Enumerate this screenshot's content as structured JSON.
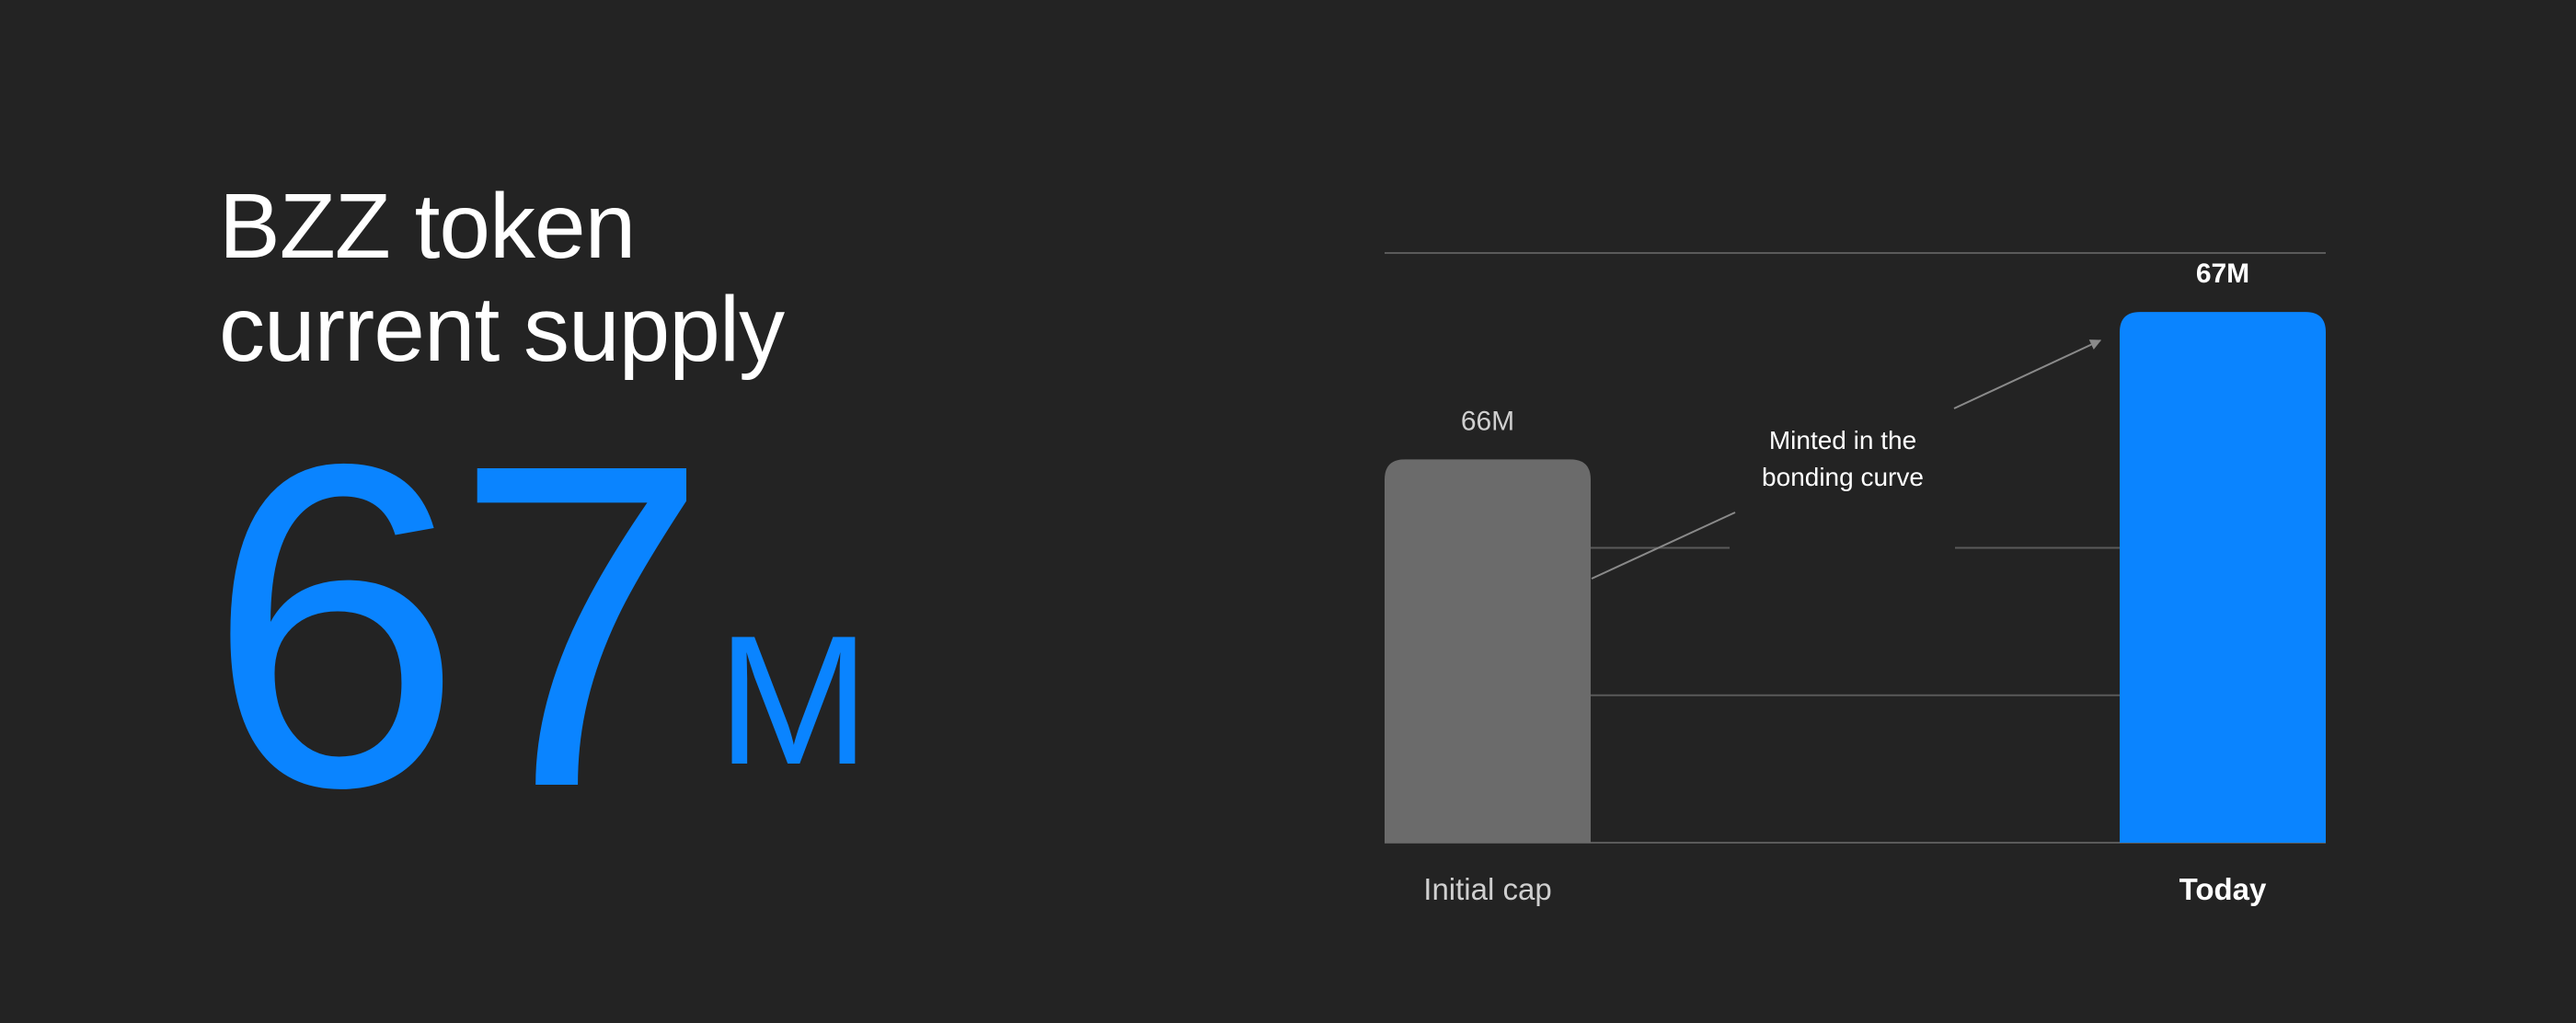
{
  "headline": {
    "line1": "BZZ token",
    "line2": "current supply",
    "value": "67",
    "unit": "M"
  },
  "colors": {
    "background": "#232323",
    "accent": "#0a84ff",
    "initial_bar": "#6b6b6b",
    "grid": "#5a5a5a",
    "text": "#ffffff",
    "muted_text": "#cfcfcf"
  },
  "chart_data": {
    "type": "bar",
    "title": "BZZ token current supply",
    "categories": [
      "Initial cap",
      "Today"
    ],
    "values": [
      66,
      67
    ],
    "value_labels": [
      "66M",
      "67M"
    ],
    "unit": "M",
    "ylim": [
      63.4,
      67.4
    ],
    "gridlines": [
      64.4,
      65.4,
      67.4
    ],
    "grid": true,
    "annotation": {
      "line1": "Minted in the",
      "line2": "bonding curve"
    }
  }
}
